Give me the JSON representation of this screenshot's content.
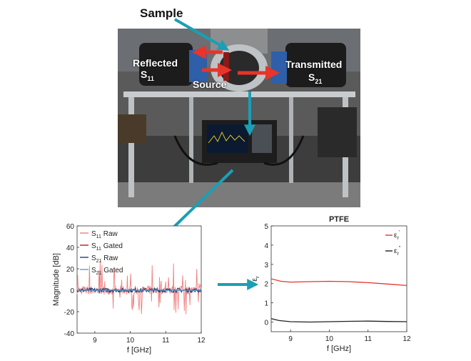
{
  "labels": {
    "sample": "Sample",
    "reflected": "Reflected",
    "s11_main": "S",
    "s11_sub": "11",
    "transmitted": "Transmitted",
    "s21_main": "S",
    "s21_sub": "21",
    "source": "Source"
  },
  "colors": {
    "arrow_blue": "#1a9fb5",
    "arrow_red": "#e8342a",
    "s11_raw": "#f07f7f",
    "s11_gated": "#c11a1a",
    "s21_raw": "#1f3f7a",
    "s21_gated": "#5aa0c8",
    "er_real": "#e8342a",
    "er_imag": "#222222"
  },
  "chart_data": [
    {
      "type": "line",
      "title": "",
      "xlabel": "f [GHz]",
      "ylabel": "Magnitude [dB]",
      "xlim": [
        8.5,
        12
      ],
      "ylim": [
        -40,
        60
      ],
      "xticks": [
        9,
        10,
        11,
        12
      ],
      "yticks": [
        -40,
        -20,
        0,
        20,
        40,
        60
      ],
      "legend_position": "top-left",
      "series": [
        {
          "name": "S11 Raw",
          "legend_main": "S",
          "legend_sub": "11",
          "legend_rest": " Raw",
          "style": "noisy-spikes",
          "center": 0,
          "amplitude": 25
        },
        {
          "name": "S11 Gated",
          "legend_main": "S",
          "legend_sub": "11",
          "legend_rest": " Gated",
          "style": "flat",
          "center": 0
        },
        {
          "name": "S21 Raw",
          "legend_main": "S",
          "legend_sub": "21",
          "legend_rest": " Raw",
          "style": "noisy",
          "center": 0,
          "amplitude": 4
        },
        {
          "name": "S21 Gated",
          "legend_main": "S",
          "legend_sub": "21",
          "legend_rest": " Gated",
          "style": "flat",
          "center": 0
        }
      ]
    },
    {
      "type": "line",
      "title": "PTFE",
      "xlabel": "f [GHz]",
      "ylabel": "εr",
      "ylabel_main": "ε",
      "ylabel_sub": "r",
      "xlim": [
        8.5,
        12
      ],
      "ylim": [
        -0.5,
        5
      ],
      "xticks": [
        9,
        10,
        11,
        12
      ],
      "yticks": [
        0,
        1,
        2,
        3,
        4,
        5
      ],
      "legend_position": "top-right",
      "series": [
        {
          "name": "εr'",
          "legend_main": "ε",
          "legend_sub": "r",
          "legend_sup": "'",
          "x": [
            8.5,
            8.75,
            9.0,
            9.5,
            10.0,
            10.5,
            11.0,
            11.5,
            12.0
          ],
          "y": [
            2.25,
            2.12,
            2.08,
            2.1,
            2.12,
            2.1,
            2.05,
            1.98,
            1.9
          ]
        },
        {
          "name": "εr\"",
          "legend_main": "ε",
          "legend_sub": "r",
          "legend_sup": "\"",
          "x": [
            8.5,
            8.7,
            9.0,
            9.5,
            10.0,
            10.5,
            11.0,
            11.5,
            12.0
          ],
          "y": [
            0.18,
            0.08,
            0.02,
            0.0,
            0.02,
            0.04,
            0.05,
            0.03,
            0.02
          ]
        }
      ]
    }
  ]
}
